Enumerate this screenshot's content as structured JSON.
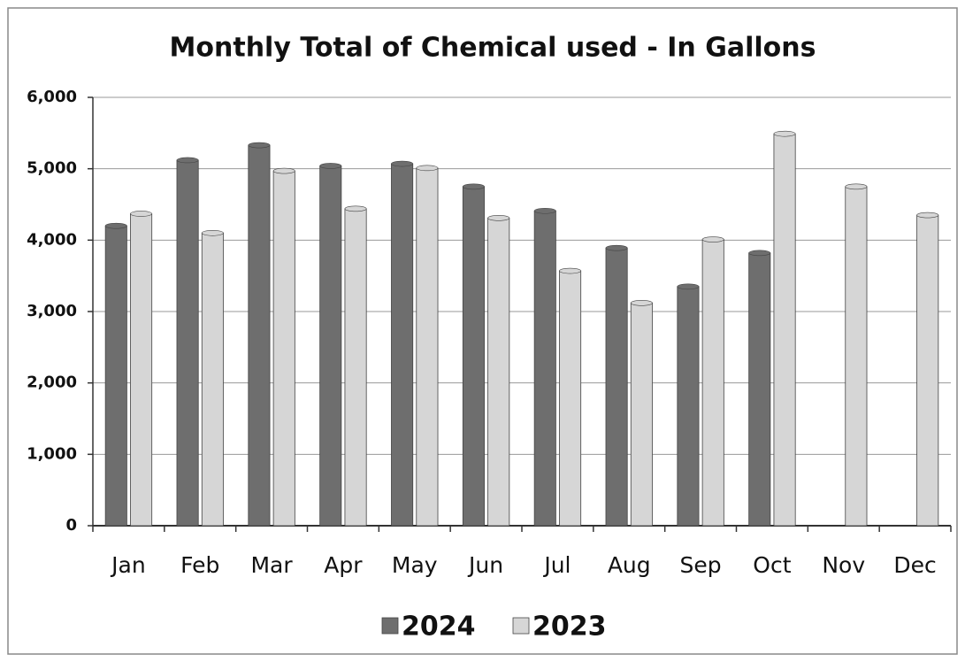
{
  "chart_data": {
    "type": "bar",
    "title": "Monthly Total of Chemical used - In Gallons",
    "categories": [
      "Jan",
      "Feb",
      "Mar",
      "Apr",
      "May",
      "Jun",
      "Jul",
      "Aug",
      "Sep",
      "Oct",
      "Nov",
      "Dec"
    ],
    "series": [
      {
        "name": "2024",
        "color": "#6e6e6e",
        "values": [
          4200,
          5120,
          5330,
          5040,
          5070,
          4750,
          4410,
          3890,
          3350,
          3820,
          null,
          null
        ]
      },
      {
        "name": "2023",
        "color": "#d6d6d6",
        "values": [
          4370,
          4100,
          4970,
          4440,
          5010,
          4310,
          3570,
          3120,
          4010,
          5490,
          4750,
          4350
        ]
      }
    ],
    "ylim": [
      0,
      6000
    ],
    "yticks": [
      0,
      {
        "value": 1000,
        "label": "1,000"
      },
      {
        "value": 2000,
        "label": "2,000"
      },
      {
        "value": 3000,
        "label": "3,000"
      },
      {
        "value": 4000,
        "label": "4,000"
      },
      {
        "value": 5000,
        "label": "5,000"
      },
      {
        "value": 6000,
        "label": "6,000"
      }
    ],
    "grid": true,
    "legend": "bottom"
  }
}
